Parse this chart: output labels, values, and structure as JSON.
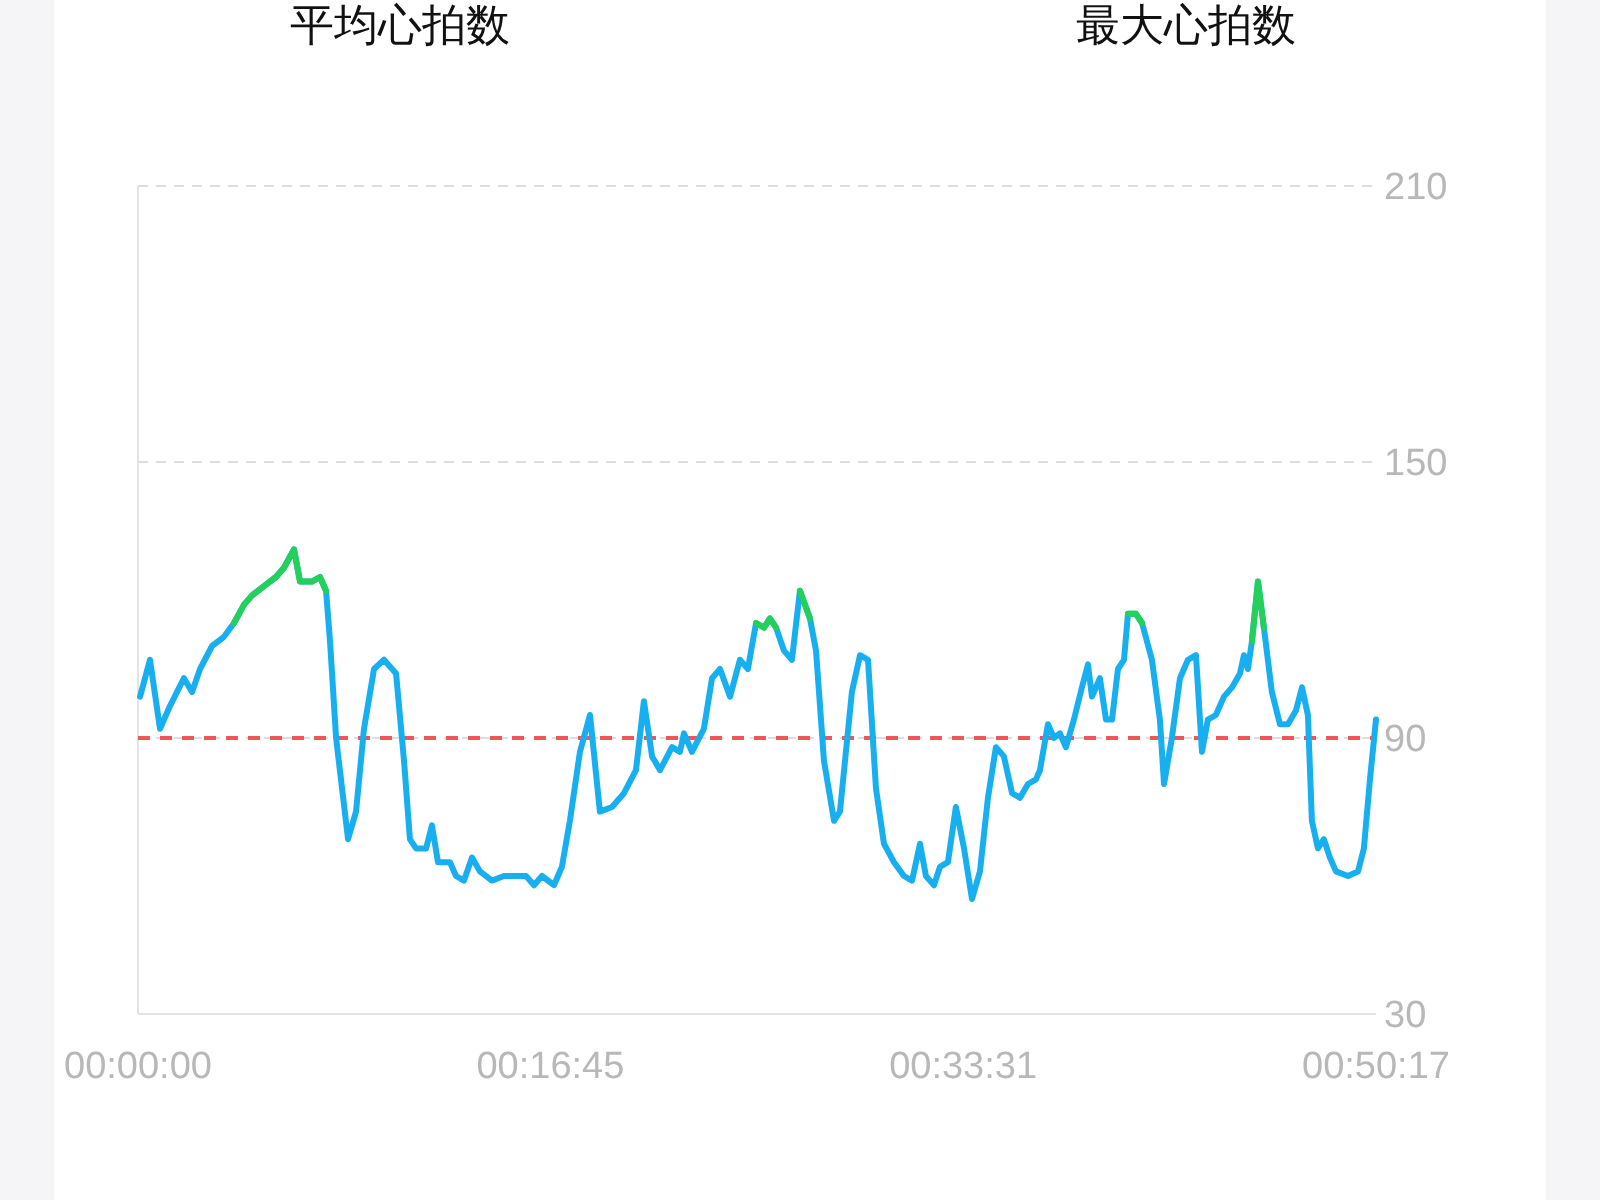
{
  "chart_data": {
    "type": "line",
    "annotations": [
      "平均心拍数",
      "最大心拍数"
    ],
    "xlim": [
      0,
      0.8381
    ],
    "xticks": [
      {
        "value": 0,
        "label": "00:00:00"
      },
      {
        "value": 0.2792,
        "label": "00:16:45"
      },
      {
        "value": 0.5586,
        "label": "00:33:31"
      },
      {
        "value": 0.8381,
        "label": "00:50:17"
      }
    ],
    "ylim": [
      30,
      210
    ],
    "yticks": [
      30,
      90,
      150,
      210
    ],
    "grid": "y",
    "line_style": "solid",
    "marker": "none",
    "ref_lines": [
      {
        "axis": "y",
        "value": 90,
        "color": "#f0555a",
        "line_style": "dashed"
      }
    ],
    "series": [
      {
        "color": "#18aff0",
        "x": [
          0.0014,
          0.0081,
          0.0149,
          0.0217,
          0.0311,
          0.0366,
          0.042,
          0.0501,
          0.0582,
          0.065,
          0.0718,
          0.0772,
          0.0853,
          0.0934,
          0.0988,
          0.1056,
          0.1097,
          0.1178,
          0.1232,
          0.1273,
          0.13,
          0.1341,
          0.1422,
          0.1476,
          0.153,
          0.1598,
          0.1665,
          0.1747,
          0.1801,
          0.1841,
          0.1882,
          0.195,
          0.199,
          0.2031,
          0.2112,
          0.2153,
          0.2207,
          0.2261,
          0.2315,
          0.2396,
          0.2478,
          0.2559,
          0.2627,
          0.2681,
          0.2735,
          0.2816,
          0.287,
          0.2924,
          0.2992,
          0.306,
          0.3127,
          0.3209,
          0.329,
          0.3371,
          0.3425,
          0.348,
          0.3534,
          0.3615,
          0.3669,
          0.3696,
          0.375,
          0.3831,
          0.3886,
          0.394,
          0.4008,
          0.4075,
          0.4129,
          0.4184,
          0.4238,
          0.4278,
          0.4319,
          0.4373,
          0.4427,
          0.4481,
          0.4549,
          0.459,
          0.4644,
          0.4712,
          0.4752,
          0.4833,
          0.4888,
          0.4942,
          0.4996,
          0.505,
          0.5118,
          0.5185,
          0.524,
          0.5294,
          0.5334,
          0.5389,
          0.5429,
          0.5483,
          0.5537,
          0.5592,
          0.5646,
          0.57,
          0.5754,
          0.5808,
          0.5862,
          0.5917,
          0.5971,
          0.6025,
          0.6079,
          0.6106,
          0.616,
          0.6201,
          0.6241,
          0.6282,
          0.6336,
          0.639,
          0.6431,
          0.6458,
          0.6512,
          0.6553,
          0.6594,
          0.6634,
          0.6675,
          0.6702,
          0.6756,
          0.6797,
          0.6864,
          0.6918,
          0.6946,
          0.6999,
          0.7054,
          0.7108,
          0.7162,
          0.7203,
          0.7243,
          0.7297,
          0.7352,
          0.7406,
          0.746,
          0.7487,
          0.7514,
          0.7541,
          0.7582,
          0.7622,
          0.7676,
          0.7731,
          0.7785,
          0.7839,
          0.788,
          0.792,
          0.7947,
          0.7988,
          0.8028,
          0.8069,
          0.811,
          0.8191,
          0.8259,
          0.8299,
          0.834,
          0.8381
        ],
        "values": [
          99,
          107,
          92,
          97,
          103,
          100,
          105,
          110,
          112,
          115,
          119,
          121,
          123,
          125,
          127,
          131,
          124,
          124,
          125,
          122,
          111,
          90,
          68,
          74,
          92,
          105,
          107,
          104,
          85,
          68,
          66,
          66,
          71,
          63,
          63,
          60,
          59,
          64,
          61,
          59,
          60,
          60,
          60,
          58,
          60,
          58,
          62,
          72,
          87,
          95,
          74,
          75,
          78,
          83,
          98,
          86,
          83,
          88,
          87,
          91,
          87,
          92,
          103,
          105,
          99,
          107,
          105,
          115,
          114,
          116,
          114,
          109,
          107,
          122,
          116,
          109,
          85,
          72,
          74,
          100,
          108,
          107,
          79,
          67,
          63,
          60,
          59,
          67,
          60,
          58,
          62,
          63,
          75,
          66,
          55,
          61,
          77,
          88,
          86,
          78,
          77,
          80,
          81,
          83,
          93,
          90,
          91,
          88,
          94,
          101,
          106,
          99,
          103,
          94,
          94,
          105,
          107,
          117,
          117,
          115,
          107,
          94,
          80,
          90,
          103,
          107,
          108,
          87,
          94,
          95,
          99,
          101,
          104,
          108,
          105,
          111,
          124,
          114,
          100,
          93,
          93,
          96,
          101,
          95,
          72,
          66,
          68,
          64,
          61,
          60,
          61,
          66,
          81,
          94
        ]
      },
      {
        "color": "#22d05a",
        "x": [
          0.065,
          0.0718,
          0.0772,
          0.0853,
          0.0934,
          0.0988,
          0.1056,
          0.1097,
          0.1178,
          0.1232,
          0.1273
        ],
        "values": [
          115,
          119,
          121,
          123,
          125,
          127,
          131,
          124,
          124,
          125,
          122
        ]
      },
      {
        "color": "#22d05a",
        "x": [
          0.4184,
          0.4238,
          0.4278,
          0.4319
        ],
        "values": [
          115,
          114,
          116,
          114
        ]
      },
      {
        "color": "#22d05a",
        "x": [
          0.4481,
          0.4549
        ],
        "values": [
          122,
          116
        ]
      },
      {
        "color": "#22d05a",
        "x": [
          0.6702,
          0.6756,
          0.6797
        ],
        "values": [
          117,
          117,
          115
        ]
      },
      {
        "color": "#22d05a",
        "x": [
          0.7541,
          0.7582,
          0.7622
        ],
        "values": [
          111,
          124,
          114
        ]
      }
    ]
  }
}
